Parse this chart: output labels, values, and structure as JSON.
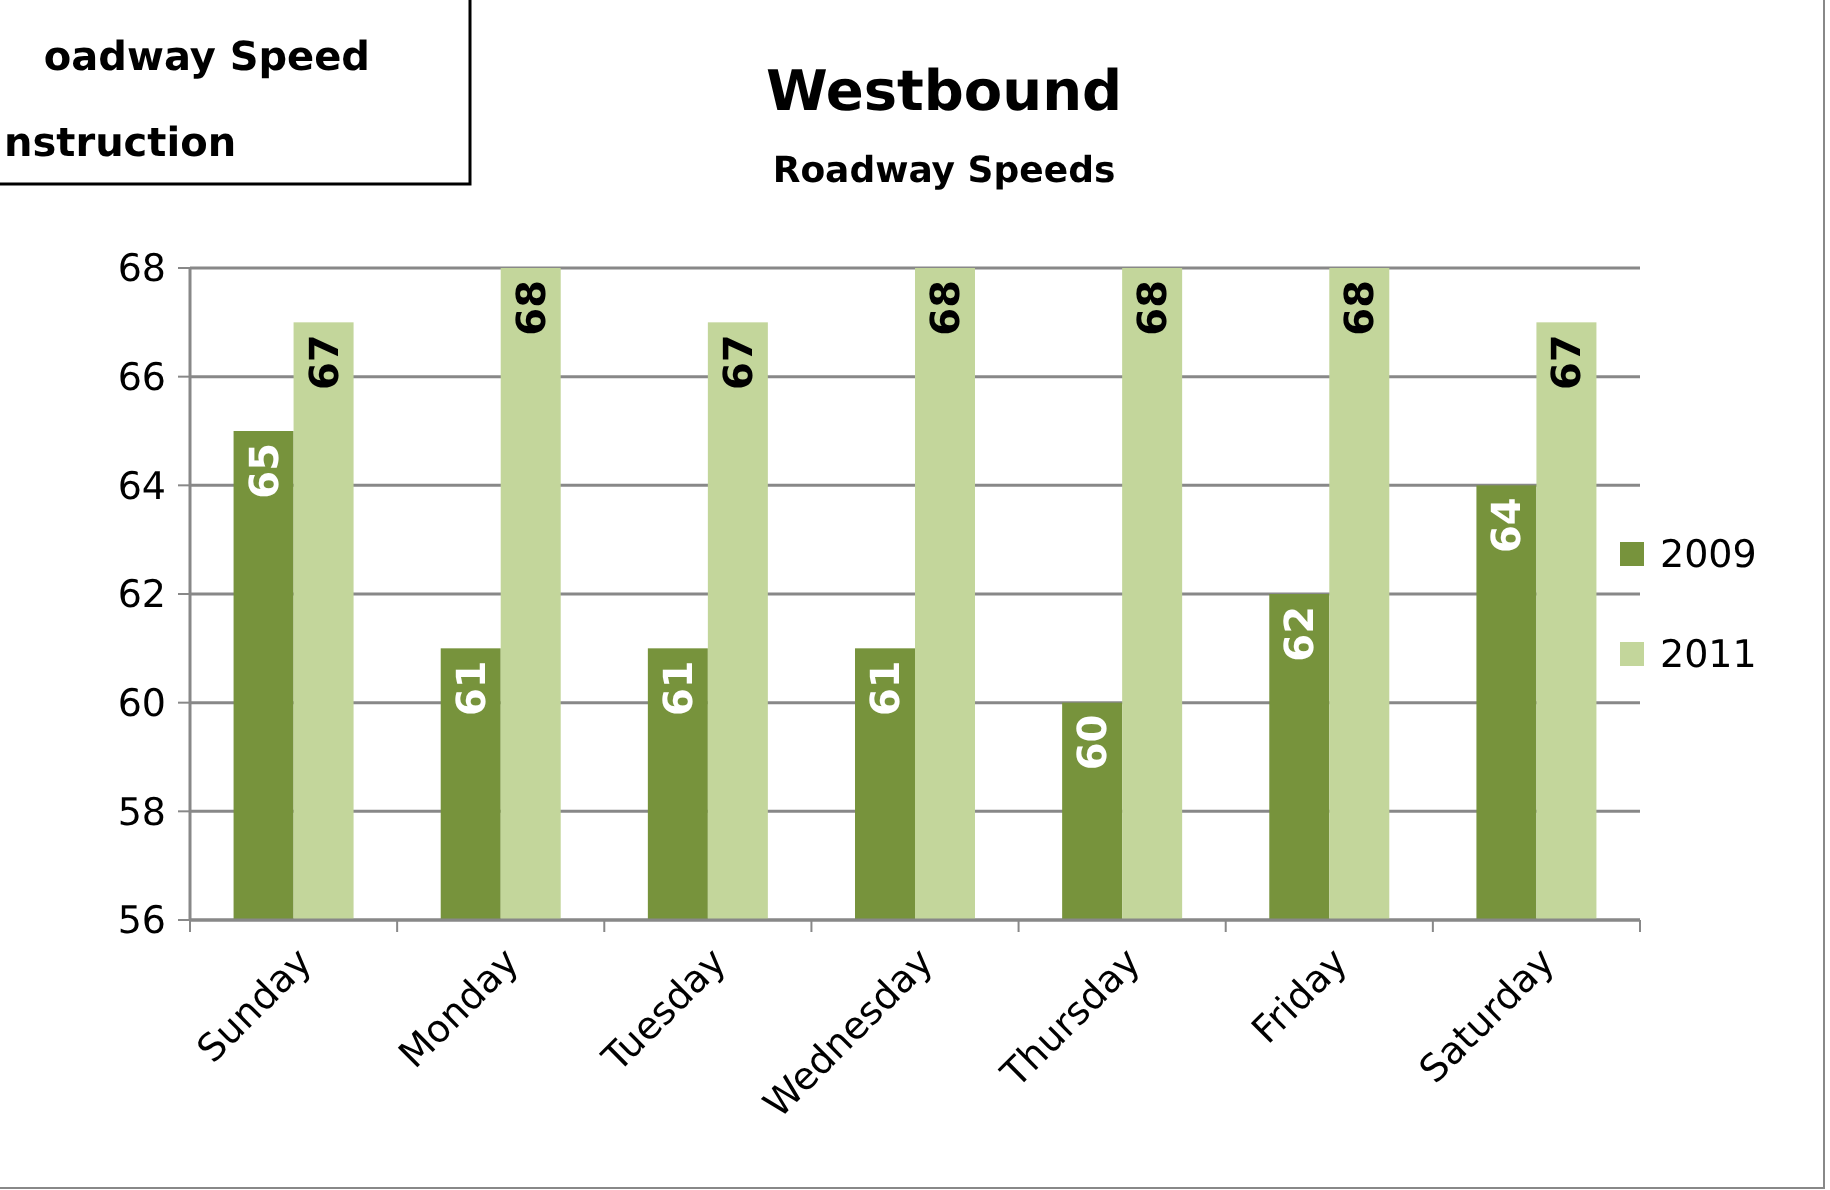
{
  "chart_data": {
    "type": "bar",
    "title": "Westbound",
    "subtitle": "Roadway Speeds",
    "annotations": [
      "oadway Speed",
      "nstruction"
    ],
    "categories": [
      "Sunday",
      "Monday",
      "Tuesday",
      "Wednesday",
      "Thursday",
      "Friday",
      "Saturday"
    ],
    "series": [
      {
        "name": "2009",
        "color": "#77933c",
        "values": [
          65,
          61,
          61,
          61,
          60,
          62,
          64
        ]
      },
      {
        "name": "2011",
        "color": "#c3d69b",
        "values": [
          67,
          68,
          67,
          68,
          68,
          68,
          67
        ]
      }
    ],
    "ylim": [
      56,
      68
    ],
    "yticks": [
      56,
      58,
      60,
      62,
      64,
      66,
      68
    ],
    "grid": "y",
    "legend": "right",
    "data_labels": true
  }
}
